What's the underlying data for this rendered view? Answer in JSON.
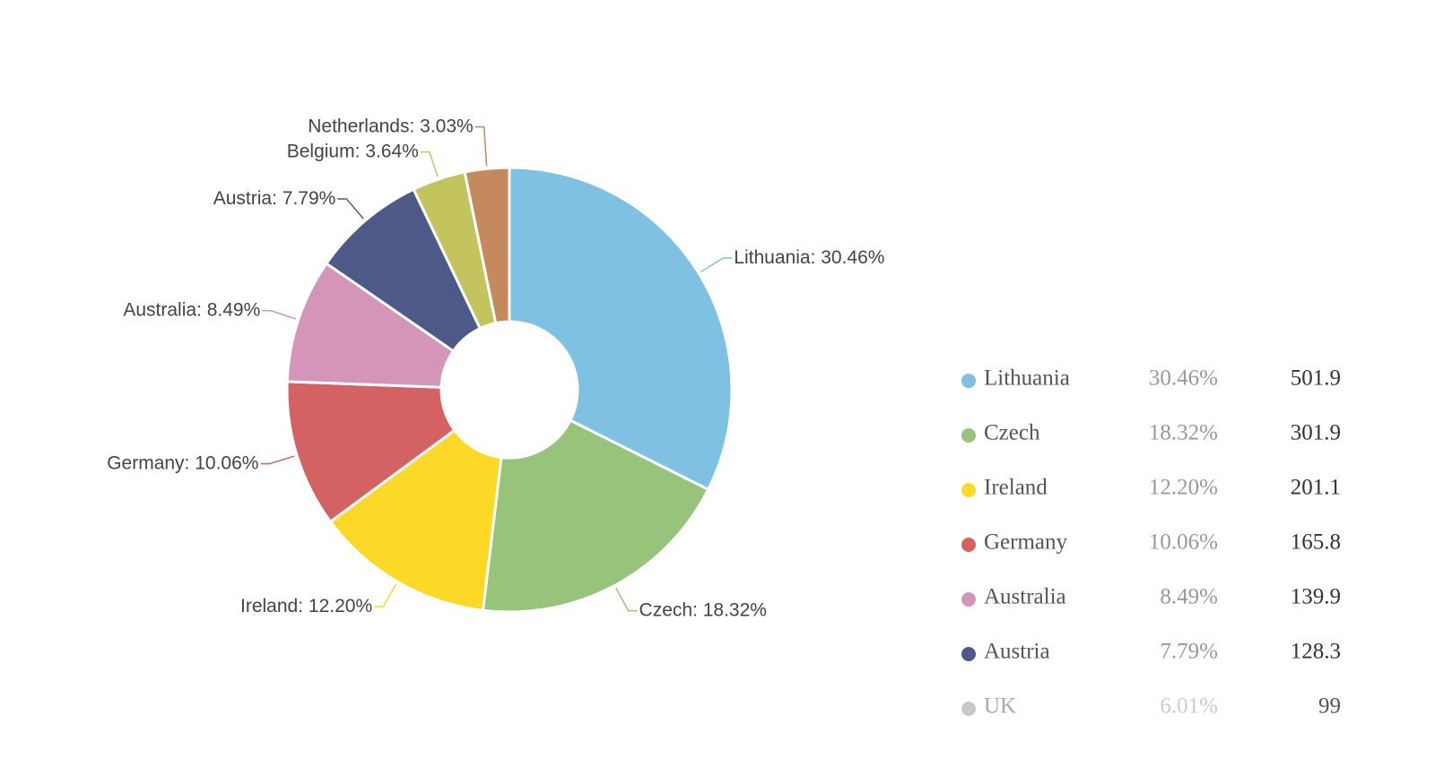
{
  "chart_data": {
    "type": "pie",
    "categories": [
      "Lithuania",
      "Czech",
      "Ireland",
      "Germany",
      "Australia",
      "Austria",
      "UK",
      "Belgium",
      "Netherlands"
    ],
    "values": [
      501.9,
      301.9,
      201.1,
      165.8,
      139.9,
      128.3,
      99,
      60,
      49.9
    ],
    "percentages": [
      "30.46%",
      "18.32%",
      "12.20%",
      "10.06%",
      "8.49%",
      "7.79%",
      "6.01%",
      "3.64%",
      "3.03%"
    ],
    "colors": [
      "#7fc1e2",
      "#98c37b",
      "#fcd927",
      "#d46262",
      "#d595b8",
      "#4d5a88",
      "#c0c0c0",
      "#c3c45e",
      "#c4895c"
    ],
    "visible": [
      true,
      true,
      true,
      true,
      true,
      true,
      false,
      true,
      true
    ],
    "label_separator": ": ",
    "donut": true
  }
}
